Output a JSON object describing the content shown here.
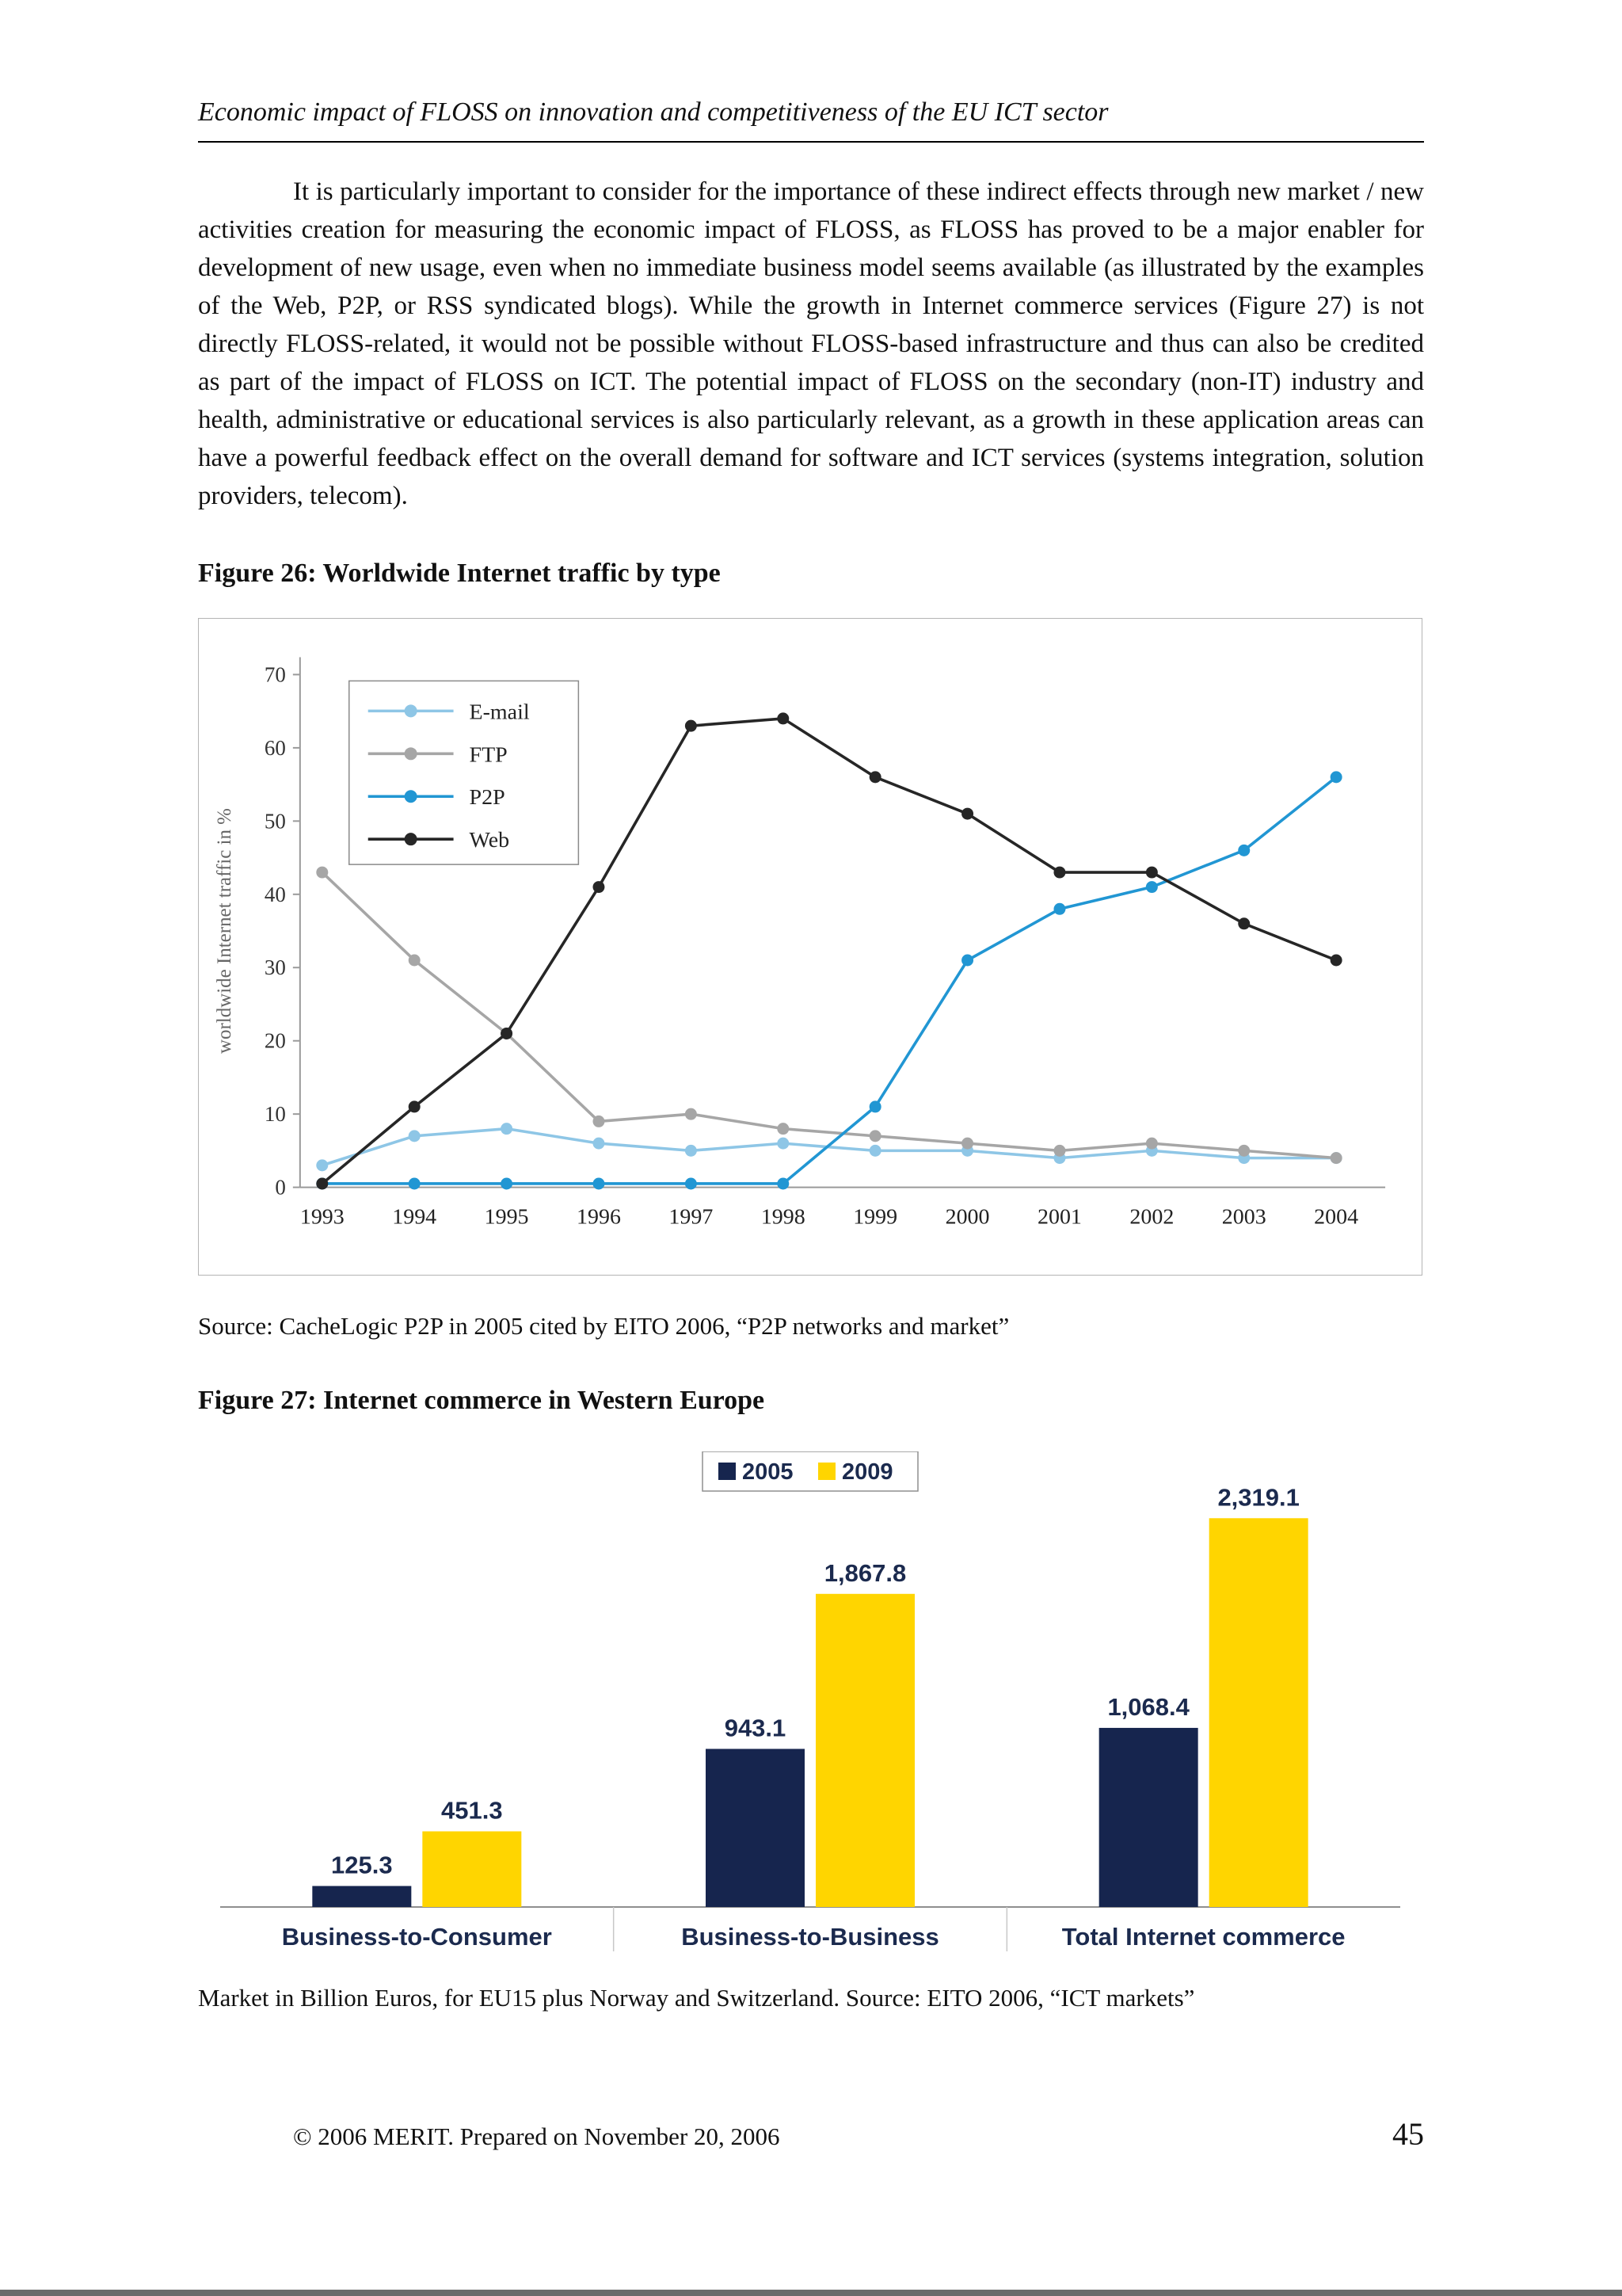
{
  "page": {
    "header_title": "Economic impact of FLOSS on innovation and competitiveness of the EU ICT sector",
    "paragraph": "It is particularly important to consider for the importance of these indirect effects through new market / new activities creation for measuring the economic impact of FLOSS, as FLOSS has proved to be a major enabler for development of new usage, even when no immediate business model seems available (as illustrated by the examples of the Web, P2P, or RSS syndicated blogs). While the growth in Internet commerce services (Figure 27) is not directly FLOSS-related, it would not be possible without FLOSS-based infrastructure and thus can also be credited as part of the impact of FLOSS on ICT. The potential impact of FLOSS on the secondary (non-IT) industry and health, administrative or educational services is also particularly relevant, as a growth in these application areas can have a powerful feedback effect on the overall demand for software and ICT services (systems integration, solution providers, telecom).",
    "figure26_title": "Figure 26: Worldwide Internet traffic by type",
    "figure26_source": "Source: CacheLogic P2P in 2005 cited by EITO 2006, “P2P networks and market”",
    "figure27_title": "Figure 27: Internet commerce in Western Europe",
    "figure27_caption": "Market in Billion Euros, for EU15 plus Norway and Switzerland. Source: EITO 2006, “ICT markets”",
    "footer_text": "© 2006 MERIT. Prepared on November 20, 2006",
    "page_number": "45"
  },
  "chart_data": [
    {
      "type": "line",
      "title": "",
      "ylabel": "worldwide Internet traffic in %",
      "xlabel": "",
      "ylim": [
        0,
        70
      ],
      "yticks": [
        0,
        10,
        20,
        30,
        40,
        50,
        60,
        70
      ],
      "x": [
        "1993",
        "1994",
        "1995",
        "1996",
        "1997",
        "1998",
        "1999",
        "2000",
        "2001",
        "2002",
        "2003",
        "2004"
      ],
      "grid": false,
      "legend_position": "top-left",
      "series": [
        {
          "name": "E-mail",
          "color": "#8ec6e6",
          "values": [
            3,
            7,
            8,
            6,
            5,
            6,
            5,
            5,
            4,
            5,
            4,
            4
          ]
        },
        {
          "name": "FTP",
          "color": "#a6a6a6",
          "values": [
            43,
            31,
            21,
            9,
            10,
            8,
            7,
            6,
            5,
            6,
            5,
            4
          ]
        },
        {
          "name": "P2P",
          "color": "#2196d3",
          "values": [
            0.5,
            0.5,
            0.5,
            0.5,
            0.5,
            0.5,
            11,
            31,
            38,
            41,
            46,
            56
          ]
        },
        {
          "name": "Web",
          "color": "#262626",
          "values": [
            0.5,
            11,
            21,
            41,
            63,
            64,
            56,
            51,
            43,
            43,
            36,
            31
          ]
        }
      ]
    },
    {
      "type": "bar",
      "title": "",
      "categories": [
        "Business-to-Consumer",
        "Business-to-Business",
        "Total Internet commerce"
      ],
      "ylim": [
        0,
        2500
      ],
      "grid": false,
      "legend_position": "top-center",
      "text_color": "#1b2a4e",
      "series": [
        {
          "name": "2005",
          "color": "#16254e",
          "values": [
            125.3,
            943.1,
            1068.4
          ]
        },
        {
          "name": "2009",
          "color": "#ffd500",
          "values": [
            451.3,
            1867.8,
            2319.1
          ]
        }
      ],
      "value_labels": [
        [
          "125.3",
          "943.1",
          "1,068.4"
        ],
        [
          "451.3",
          "1,867.8",
          "2,319.1"
        ]
      ]
    }
  ]
}
